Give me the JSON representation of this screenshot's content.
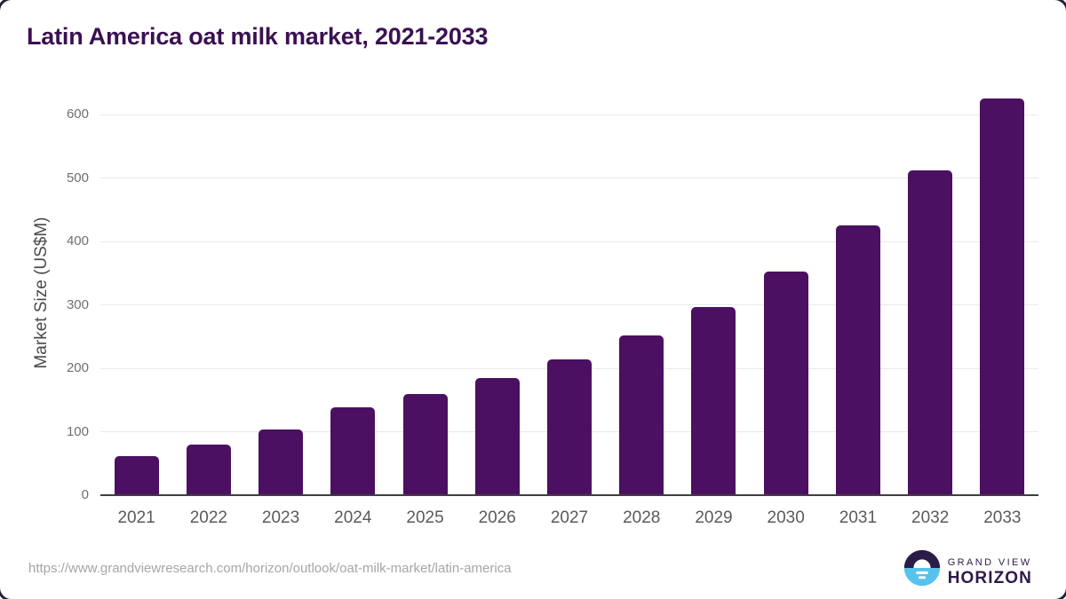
{
  "title": "Latin America oat milk market, 2021-2033",
  "chart_data": {
    "type": "bar",
    "categories": [
      "2021",
      "2022",
      "2023",
      "2024",
      "2025",
      "2026",
      "2027",
      "2028",
      "2029",
      "2030",
      "2031",
      "2032",
      "2033"
    ],
    "values": [
      61,
      80,
      104,
      138,
      160,
      184,
      214,
      252,
      297,
      353,
      425,
      512,
      625
    ],
    "title": "Latin America oat milk market, 2021-2033",
    "xlabel": "",
    "ylabel": "Market Size (US$M)",
    "ylim": [
      0,
      600
    ],
    "yticks": [
      0,
      100,
      200,
      300,
      400,
      500,
      600
    ],
    "grid": true,
    "legend": "none",
    "bar_color": "#4b1061"
  },
  "colors": {
    "title_text": "#3b1053",
    "bar": "#4b1061",
    "axis_line": "#3f3f3f",
    "gridline": "#e9e9e9",
    "tick_text": "#5a5a5a",
    "url_text": "#a6a6a6",
    "logo_dark": "#2b1b47",
    "logo_blue": "#55c3ee"
  },
  "footer": {
    "source_url": "https://www.grandviewresearch.com/horizon/outlook/oat-milk-market/latin-america",
    "logo": {
      "icon": "horizon-sun-icon",
      "line1": "GRAND VIEW",
      "line2": "HORIZON"
    }
  }
}
